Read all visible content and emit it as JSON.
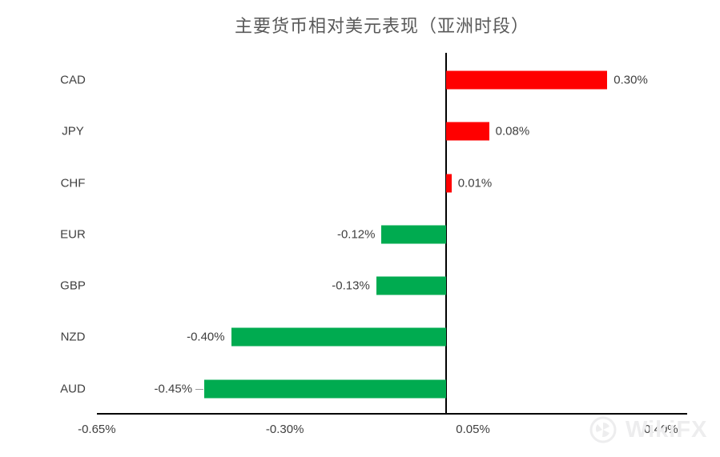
{
  "chart_data": {
    "type": "bar",
    "orientation": "horizontal",
    "title": "主要货币相对美元表现（亚洲时段）",
    "categories": [
      "CAD",
      "JPY",
      "CHF",
      "EUR",
      "GBP",
      "NZD",
      "AUD"
    ],
    "values": [
      0.3,
      0.08,
      0.01,
      -0.12,
      -0.13,
      -0.4,
      -0.45
    ],
    "value_labels": [
      "0.30%",
      "0.08%",
      "0.01%",
      "-0.12%",
      "-0.13%",
      "-0.40%",
      "-0.45%"
    ],
    "x_tick_labels": [
      "-0.65%",
      "-0.30%",
      "0.05%",
      "0.40%"
    ],
    "x_tick_values": [
      -0.65,
      -0.3,
      0.05,
      0.4
    ],
    "xlim": [
      -0.65,
      0.45
    ],
    "grid": false,
    "legend": false,
    "colors": {
      "positive": "#ff0000",
      "negative": "#00ab50",
      "axis": "#000000",
      "label_text": "#404040",
      "title_text": "#595959"
    }
  },
  "watermark": {
    "text": "WikiFX"
  }
}
